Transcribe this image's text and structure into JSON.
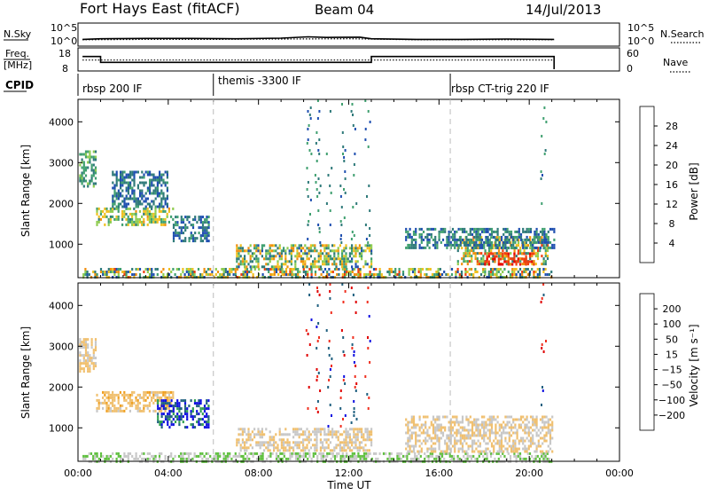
{
  "header": {
    "station": "Fort Hays East (fitACF)",
    "beam": "Beam 04",
    "date": "14/Jul/2013"
  },
  "chart_data": [
    {
      "type": "line",
      "panel": "noise",
      "left_label": "N.Sky",
      "right_label": "N.Search",
      "left_ticks": [
        "10^5",
        "10^0"
      ],
      "right_ticks": [
        "10^5",
        "10^0"
      ],
      "x_range_hours": [
        0,
        24
      ],
      "series": [
        {
          "style": "solid",
          "x": [
            0.2,
            1,
            3,
            5,
            7,
            9,
            10.2,
            11,
            12.5,
            13,
            15,
            17,
            19,
            21.1
          ],
          "y": [
            1,
            1.2,
            1.3,
            1.3,
            1.2,
            1.4,
            1.8,
            1.6,
            1.7,
            1.2,
            1.0,
            1.0,
            1.1,
            1.0
          ]
        },
        {
          "style": "dotted",
          "x": [
            0.2,
            3,
            6,
            9,
            12,
            15,
            18,
            21.1
          ],
          "y": [
            0.9,
            1.0,
            1.0,
            1.1,
            1.2,
            0.9,
            0.9,
            0.9
          ]
        }
      ]
    },
    {
      "type": "line",
      "panel": "frequency",
      "left_label_lines": [
        "Freq.",
        "[MHz]"
      ],
      "right_label": "Nave",
      "left_ticks": [
        18,
        8
      ],
      "right_ticks": [
        60,
        0
      ],
      "left_range": [
        8,
        18
      ],
      "right_range": [
        0,
        60
      ],
      "freq": {
        "x": [
          0.2,
          1.0,
          1.0,
          13.0,
          13.0,
          21.1,
          21.1
        ],
        "y": [
          14.5,
          14.5,
          11.5,
          11.5,
          14.5,
          14.5,
          8
        ]
      },
      "nave": {
        "x": [
          0.2,
          21.1
        ],
        "y": [
          28,
          28
        ]
      }
    },
    {
      "type": "table",
      "panel": "cpid",
      "label": "CPID",
      "entries": [
        {
          "start": 0,
          "text": "rbsp 200 IF"
        },
        {
          "start": 6.0,
          "text": "themis -3300 IF"
        },
        {
          "start": 16.5,
          "text": "rbsp CT-trig 220 IF"
        }
      ]
    },
    {
      "type": "heatmap",
      "panel": "power",
      "ylabel": "Slant Range [km]",
      "y_ticks": [
        1000,
        2000,
        3000,
        4000
      ],
      "ylim": [
        180,
        4550
      ],
      "colorbar_label": "Power [dB]",
      "colorbar_ticks": [
        4,
        8,
        12,
        16,
        20,
        24,
        28
      ],
      "colorbar_range": [
        0,
        32
      ],
      "colors": [
        "#1a0ff0",
        "#1f4fb0",
        "#2f7a7a",
        "#40a070",
        "#8fcc50",
        "#f0c020",
        "#f09010",
        "#f04010",
        "#e80000"
      ],
      "regions": [
        {
          "x": [
            0.05,
            0.8
          ],
          "y": [
            2450,
            3300
          ],
          "v": [
            8,
            16
          ]
        },
        {
          "x": [
            0.8,
            4.2
          ],
          "y": [
            1450,
            1900
          ],
          "v": [
            10,
            22
          ]
        },
        {
          "x": [
            1.5,
            4.0
          ],
          "y": [
            1900,
            2800
          ],
          "v": [
            4,
            12
          ]
        },
        {
          "x": [
            4.2,
            5.8
          ],
          "y": [
            1100,
            1700
          ],
          "v": [
            4,
            12
          ]
        },
        {
          "x": [
            0.2,
            21.0
          ],
          "y": [
            200,
            420
          ],
          "v": [
            4,
            26
          ]
        },
        {
          "x": [
            7.0,
            13.0
          ],
          "y": [
            450,
            1000
          ],
          "v": [
            6,
            24
          ]
        },
        {
          "x": [
            16.8,
            20.8
          ],
          "y": [
            500,
            1200
          ],
          "v": [
            8,
            26
          ]
        },
        {
          "x": [
            18.0,
            20.2
          ],
          "y": [
            500,
            800
          ],
          "v": [
            24,
            30
          ]
        },
        {
          "x": [
            14.5,
            21.1
          ],
          "y": [
            900,
            1400
          ],
          "v": [
            4,
            14
          ]
        }
      ],
      "streaks": [
        10.2,
        10.6,
        11.1,
        11.7,
        12.2,
        12.8,
        20.6
      ]
    },
    {
      "type": "heatmap",
      "panel": "velocity",
      "ylabel": "Slant Range [km]",
      "y_ticks": [
        1000,
        2000,
        3000,
        4000
      ],
      "ylim": [
        180,
        4550
      ],
      "colorbar_label": "Velocity [m s⁻¹]",
      "colorbar_ticks": [
        "200",
        "100",
        "50",
        "15",
        "−15",
        "−50",
        "−100",
        "−200"
      ],
      "colorbar_range": [
        -250,
        250
      ],
      "colors": [
        "#e00000",
        "#f03020",
        "#f07010",
        "#f0a020",
        "#f0c070",
        "#c8c8c8",
        "#60c040",
        "#30a050",
        "#206080",
        "#1010e0"
      ],
      "regions": [
        {
          "x": [
            0.05,
            0.8
          ],
          "y": [
            2400,
            3200
          ],
          "v": [
            -20,
            20
          ]
        },
        {
          "x": [
            0.8,
            4.2
          ],
          "y": [
            1400,
            1900
          ],
          "v": [
            -60,
            10
          ]
        },
        {
          "x": [
            3.5,
            5.8
          ],
          "y": [
            1000,
            1700
          ],
          "v": [
            120,
            260
          ]
        },
        {
          "x": [
            0.2,
            21.0
          ],
          "y": [
            200,
            400
          ],
          "v": [
            15,
            80
          ]
        },
        {
          "x": [
            7.0,
            13.0
          ],
          "y": [
            450,
            1000
          ],
          "v": [
            -30,
            30
          ]
        },
        {
          "x": [
            14.5,
            21.0
          ],
          "y": [
            450,
            1300
          ],
          "v": [
            -14,
            14
          ]
        }
      ],
      "streaks": [
        10.2,
        10.6,
        11.1,
        11.7,
        12.2,
        12.8,
        20.6
      ]
    }
  ],
  "x_axis": {
    "label": "Time UT",
    "ticks": [
      "00:00",
      "04:00",
      "08:00",
      "12:00",
      "16:00",
      "20:00",
      "00:00"
    ],
    "tick_hours": [
      0,
      4,
      8,
      12,
      16,
      20,
      24
    ],
    "cpid_change_hours": [
      6.0,
      16.5
    ]
  }
}
